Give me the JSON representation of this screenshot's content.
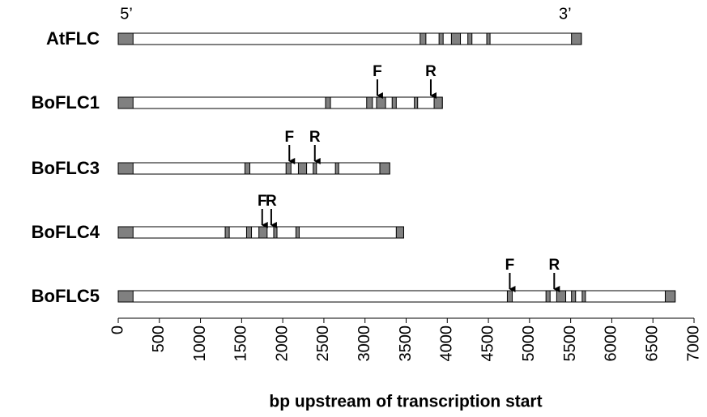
{
  "chart_data": {
    "type": "gene_structure",
    "xlabel": "bp upstream of transcription start",
    "five_prime_label": "5’",
    "three_prime_label": "3’",
    "xlim": [
      0,
      7000
    ],
    "xticks": [
      0,
      500,
      1000,
      1500,
      2000,
      2500,
      3000,
      3500,
      4000,
      4500,
      5000,
      5500,
      6000,
      6500,
      7000
    ],
    "bar_color": "#ffffff",
    "exon_color": "#808080",
    "genes": [
      {
        "name": "AtFLC",
        "length": 5630,
        "exons": [
          [
            0,
            180
          ],
          [
            3670,
            3740
          ],
          [
            3900,
            3950
          ],
          [
            4050,
            4160
          ],
          [
            4250,
            4300
          ],
          [
            4480,
            4520
          ],
          [
            5510,
            5630
          ]
        ],
        "primers": []
      },
      {
        "name": "BoFLC1",
        "length": 3940,
        "exons": [
          [
            0,
            180
          ],
          [
            2520,
            2580
          ],
          [
            3020,
            3090
          ],
          [
            3140,
            3250
          ],
          [
            3330,
            3380
          ],
          [
            3600,
            3640
          ],
          [
            3840,
            3940
          ]
        ],
        "primers": [
          {
            "label": "F",
            "position": 3150
          },
          {
            "label": "R",
            "position": 3800
          }
        ]
      },
      {
        "name": "BoFLC3",
        "length": 3300,
        "exons": [
          [
            0,
            180
          ],
          [
            1540,
            1600
          ],
          [
            2040,
            2100
          ],
          [
            2190,
            2290
          ],
          [
            2370,
            2410
          ],
          [
            2640,
            2680
          ],
          [
            3180,
            3300
          ]
        ],
        "primers": [
          {
            "label": "F",
            "position": 2080
          },
          {
            "label": "R",
            "position": 2390
          }
        ]
      },
      {
        "name": "BoFLC4",
        "length": 3470,
        "exons": [
          [
            0,
            180
          ],
          [
            1300,
            1350
          ],
          [
            1560,
            1620
          ],
          [
            1710,
            1810
          ],
          [
            1890,
            1930
          ],
          [
            2160,
            2200
          ],
          [
            3380,
            3470
          ]
        ],
        "primers": [
          {
            "label": "F",
            "position": 1750
          },
          {
            "label": "R",
            "position": 1860
          }
        ]
      },
      {
        "name": "BoFLC5",
        "length": 6770,
        "exons": [
          [
            0,
            180
          ],
          [
            4730,
            4790
          ],
          [
            5200,
            5250
          ],
          [
            5330,
            5440
          ],
          [
            5510,
            5560
          ],
          [
            5640,
            5680
          ],
          [
            6650,
            6770
          ]
        ],
        "primers": [
          {
            "label": "F",
            "position": 4760
          },
          {
            "label": "R",
            "position": 5300
          }
        ]
      }
    ]
  }
}
